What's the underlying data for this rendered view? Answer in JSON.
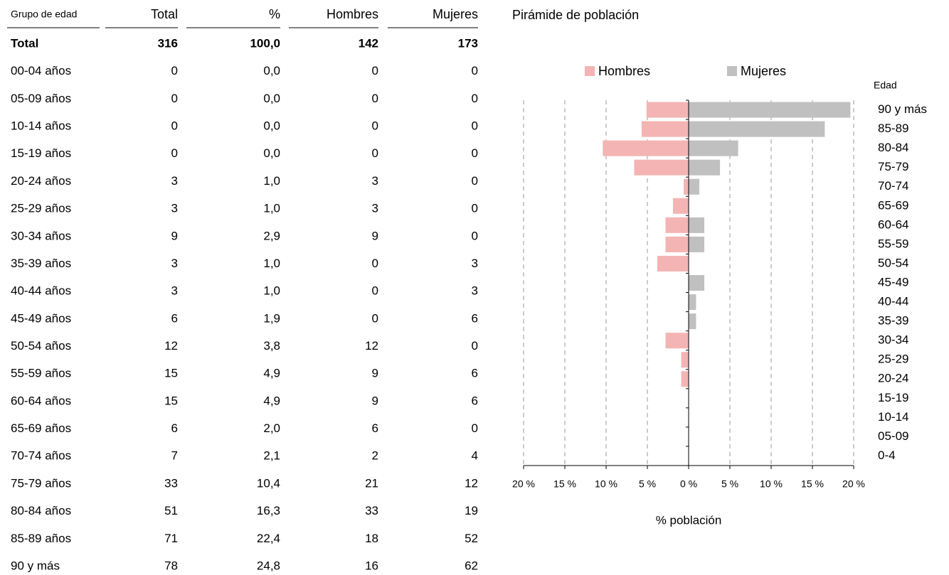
{
  "table": {
    "header": [
      "Grupo de edad",
      "Total",
      "%",
      "Hombres",
      "Mujeres"
    ],
    "rows": [
      [
        "Total",
        "316",
        "100,0",
        "142",
        "173"
      ],
      [
        "00-04 años",
        "0",
        "0,0",
        "0",
        "0"
      ],
      [
        "05-09 años",
        "0",
        "0,0",
        "0",
        "0"
      ],
      [
        "10-14 años",
        "0",
        "0,0",
        "0",
        "0"
      ],
      [
        "15-19 años",
        "0",
        "0,0",
        "0",
        "0"
      ],
      [
        "20-24 años",
        "3",
        "1,0",
        "3",
        "0"
      ],
      [
        "25-29 años",
        "3",
        "1,0",
        "3",
        "0"
      ],
      [
        "30-34 años",
        "9",
        "2,9",
        "9",
        "0"
      ],
      [
        "35-39 años",
        "3",
        "1,0",
        "0",
        "3"
      ],
      [
        "40-44 años",
        "3",
        "1,0",
        "0",
        "3"
      ],
      [
        "45-49 años",
        "6",
        "1,9",
        "0",
        "6"
      ],
      [
        "50-54 años",
        "12",
        "3,8",
        "12",
        "0"
      ],
      [
        "55-59 años",
        "15",
        "4,9",
        "9",
        "6"
      ],
      [
        "60-64 años",
        "15",
        "4,9",
        "9",
        "6"
      ],
      [
        "65-69 años",
        "6",
        "2,0",
        "6",
        "0"
      ],
      [
        "70-74 años",
        "7",
        "2,1",
        "2",
        "4"
      ],
      [
        "75-79 años",
        "33",
        "10,4",
        "21",
        "12"
      ],
      [
        "80-84 años",
        "51",
        "16,3",
        "33",
        "19"
      ],
      [
        "85-89 años",
        "71",
        "22,4",
        "18",
        "52"
      ],
      [
        "90 y más",
        "78",
        "24,8",
        "16",
        "62"
      ]
    ]
  },
  "chart_data": {
    "type": "pyramid",
    "title": "Pirámide de población",
    "y_label": "Edad",
    "x_label": "% población",
    "categories": [
      "90 y más",
      "85-89",
      "80-84",
      "75-79",
      "70-74",
      "65-69",
      "60-64",
      "55-59",
      "50-54",
      "45-49",
      "40-44",
      "35-39",
      "30-34",
      "25-29",
      "20-24",
      "15-19",
      "10-14",
      "05-09",
      "0-4"
    ],
    "series": [
      {
        "name": "Hombres",
        "color": "#f4b4b4",
        "side": "left",
        "values": [
          5.1,
          5.7,
          10.4,
          6.6,
          0.6,
          1.9,
          2.8,
          2.8,
          3.8,
          0,
          0,
          0,
          2.8,
          0.9,
          0.9,
          0,
          0,
          0,
          0
        ]
      },
      {
        "name": "Mujeres",
        "color": "#c0c0c0",
        "side": "right",
        "values": [
          19.6,
          16.5,
          6.0,
          3.8,
          1.3,
          0,
          1.9,
          1.9,
          0,
          1.9,
          0.9,
          0.9,
          0,
          0,
          0,
          0,
          0,
          0,
          0
        ]
      }
    ],
    "xlim": [
      -20,
      20
    ],
    "xticks": [
      {
        "value": -20,
        "label": "20 %"
      },
      {
        "value": -15,
        "label": "15 %"
      },
      {
        "value": -10,
        "label": "10 %"
      },
      {
        "value": -5,
        "label": "5 %"
      },
      {
        "value": 0,
        "label": "0 %"
      },
      {
        "value": 5,
        "label": "5 %"
      },
      {
        "value": 10,
        "label": "10 %"
      },
      {
        "value": 15,
        "label": "15 %"
      },
      {
        "value": 20,
        "label": "20 %"
      }
    ],
    "grid": true,
    "legend": "top"
  }
}
